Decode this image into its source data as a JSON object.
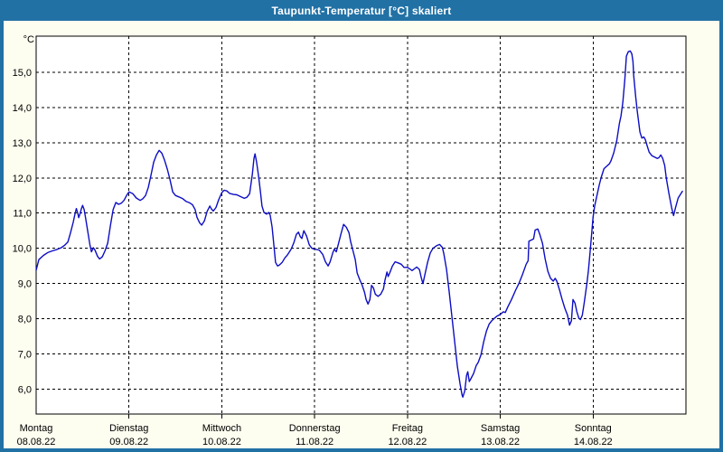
{
  "window": {
    "title": "Taupunkt-Temperatur [°C] skaliert"
  },
  "colors": {
    "titlebar": "#2171a5",
    "title_text": "#ffffff",
    "window_bg": "#fdfdf0",
    "plot_bg": "#ffffff",
    "grid": "#000000",
    "text": "#000000",
    "line": "#0d0dc4"
  },
  "chart_data": {
    "type": "line",
    "title": "Taupunkt-Temperatur [°C] skaliert",
    "grid": true,
    "legend": false,
    "x_axis": {
      "range_hours": [
        0,
        168
      ],
      "ticks": [
        {
          "hour": 0,
          "day": "Montag",
          "date": "08.08.22"
        },
        {
          "hour": 24,
          "day": "Dienstag",
          "date": "09.08.22"
        },
        {
          "hour": 48,
          "day": "Mittwoch",
          "date": "10.08.22"
        },
        {
          "hour": 72,
          "day": "Donnerstag",
          "date": "11.08.22"
        },
        {
          "hour": 96,
          "day": "Freitag",
          "date": "12.08.22"
        },
        {
          "hour": 120,
          "day": "Samstag",
          "date": "13.08.22"
        },
        {
          "hour": 144,
          "day": "Sonntag",
          "date": "14.08.22"
        }
      ]
    },
    "y_axis": {
      "unit": "°C",
      "range": [
        5.3,
        16.02
      ],
      "ticks": [
        {
          "value": 15,
          "label": "15,0"
        },
        {
          "value": 14,
          "label": "14,0"
        },
        {
          "value": 13,
          "label": "13,0"
        },
        {
          "value": 12,
          "label": "12,0"
        },
        {
          "value": 11,
          "label": "11,0"
        },
        {
          "value": 10,
          "label": "10,0"
        },
        {
          "value": 9,
          "label": "9,0"
        },
        {
          "value": 8,
          "label": "8,0"
        },
        {
          "value": 7,
          "label": "7,0"
        },
        {
          "value": 6,
          "label": "6,0"
        }
      ]
    },
    "series": [
      {
        "points": [
          [
            0,
            9.38
          ],
          [
            0.7,
            9.68
          ],
          [
            1.9,
            9.8
          ],
          [
            3,
            9.88
          ],
          [
            4.2,
            9.93
          ],
          [
            5.4,
            9.97
          ],
          [
            6.5,
            10.02
          ],
          [
            7.3,
            10.08
          ],
          [
            8.2,
            10.18
          ],
          [
            8.9,
            10.45
          ],
          [
            9.6,
            10.75
          ],
          [
            10.1,
            11.0
          ],
          [
            10.4,
            11.13
          ],
          [
            10.8,
            10.98
          ],
          [
            11,
            10.87
          ],
          [
            11.4,
            11.0
          ],
          [
            11.7,
            11.13
          ],
          [
            12,
            11.22
          ],
          [
            12.4,
            11.1
          ],
          [
            12.8,
            10.85
          ],
          [
            13.4,
            10.45
          ],
          [
            13.9,
            10.1
          ],
          [
            14.3,
            9.9
          ],
          [
            14.8,
            10.02
          ],
          [
            15.2,
            9.95
          ],
          [
            15.9,
            9.77
          ],
          [
            16.4,
            9.7
          ],
          [
            17.1,
            9.76
          ],
          [
            17.8,
            9.93
          ],
          [
            18.5,
            10.15
          ],
          [
            19.2,
            10.65
          ],
          [
            19.9,
            11.1
          ],
          [
            20.6,
            11.3
          ],
          [
            21.3,
            11.25
          ],
          [
            22,
            11.28
          ],
          [
            22.7,
            11.36
          ],
          [
            23.4,
            11.5
          ],
          [
            24,
            11.6
          ],
          [
            25,
            11.55
          ],
          [
            25.9,
            11.43
          ],
          [
            26.9,
            11.36
          ],
          [
            27.6,
            11.41
          ],
          [
            28.3,
            11.5
          ],
          [
            29,
            11.73
          ],
          [
            29.7,
            12.08
          ],
          [
            30.4,
            12.45
          ],
          [
            31.1,
            12.65
          ],
          [
            31.8,
            12.78
          ],
          [
            32.5,
            12.7
          ],
          [
            33.2,
            12.5
          ],
          [
            33.9,
            12.25
          ],
          [
            34.6,
            11.95
          ],
          [
            35.3,
            11.6
          ],
          [
            36,
            11.5
          ],
          [
            36.9,
            11.46
          ],
          [
            37.9,
            11.41
          ],
          [
            38.8,
            11.33
          ],
          [
            39.7,
            11.29
          ],
          [
            40.4,
            11.24
          ],
          [
            41.1,
            11.1
          ],
          [
            41.6,
            10.88
          ],
          [
            42.3,
            10.72
          ],
          [
            42.8,
            10.66
          ],
          [
            43.5,
            10.78
          ],
          [
            44.2,
            11.05
          ],
          [
            44.9,
            11.2
          ],
          [
            45.3,
            11.12
          ],
          [
            45.8,
            11.06
          ],
          [
            46.5,
            11.16
          ],
          [
            47.2,
            11.38
          ],
          [
            48,
            11.58
          ],
          [
            48.6,
            11.65
          ],
          [
            49.3,
            11.63
          ],
          [
            50,
            11.56
          ],
          [
            51,
            11.53
          ],
          [
            51.9,
            11.52
          ],
          [
            52.8,
            11.47
          ],
          [
            53.8,
            11.42
          ],
          [
            54.5,
            11.45
          ],
          [
            55.2,
            11.55
          ],
          [
            55.9,
            12.1
          ],
          [
            56.3,
            12.55
          ],
          [
            56.6,
            12.68
          ],
          [
            57,
            12.45
          ],
          [
            57.5,
            12.05
          ],
          [
            58,
            11.6
          ],
          [
            58.4,
            11.2
          ],
          [
            58.9,
            11.02
          ],
          [
            59.6,
            10.97
          ],
          [
            60.1,
            11.02
          ],
          [
            60.5,
            10.95
          ],
          [
            61,
            10.6
          ],
          [
            61.5,
            10.05
          ],
          [
            61.9,
            9.6
          ],
          [
            62.4,
            9.5
          ],
          [
            62.9,
            9.53
          ],
          [
            63.6,
            9.6
          ],
          [
            64.3,
            9.73
          ],
          [
            65,
            9.82
          ],
          [
            65.9,
            9.97
          ],
          [
            66.6,
            10.15
          ],
          [
            67.3,
            10.4
          ],
          [
            67.8,
            10.46
          ],
          [
            68.3,
            10.33
          ],
          [
            68.7,
            10.28
          ],
          [
            69.2,
            10.5
          ],
          [
            69.9,
            10.35
          ],
          [
            70.6,
            10.1
          ],
          [
            71.3,
            10.0
          ],
          [
            72,
            9.98
          ],
          [
            73.2,
            9.95
          ],
          [
            74.1,
            9.83
          ],
          [
            74.8,
            9.62
          ],
          [
            75.5,
            9.5
          ],
          [
            76,
            9.62
          ],
          [
            76.7,
            9.88
          ],
          [
            77.1,
            9.98
          ],
          [
            77.6,
            9.9
          ],
          [
            78.1,
            10.1
          ],
          [
            78.8,
            10.4
          ],
          [
            79.5,
            10.68
          ],
          [
            80.2,
            10.6
          ],
          [
            80.9,
            10.44
          ],
          [
            81.3,
            10.2
          ],
          [
            81.8,
            9.98
          ],
          [
            82.5,
            9.68
          ],
          [
            83,
            9.3
          ],
          [
            83.7,
            9.1
          ],
          [
            84.2,
            8.98
          ],
          [
            84.9,
            8.75
          ],
          [
            85.3,
            8.55
          ],
          [
            85.8,
            8.42
          ],
          [
            86.3,
            8.55
          ],
          [
            86.7,
            8.95
          ],
          [
            87.2,
            8.88
          ],
          [
            87.7,
            8.7
          ],
          [
            88.4,
            8.64
          ],
          [
            89.1,
            8.7
          ],
          [
            89.8,
            8.85
          ],
          [
            90.2,
            9.1
          ],
          [
            90.7,
            9.33
          ],
          [
            91,
            9.2
          ],
          [
            91.4,
            9.3
          ],
          [
            92.1,
            9.5
          ],
          [
            92.8,
            9.62
          ],
          [
            93.5,
            9.59
          ],
          [
            94.4,
            9.55
          ],
          [
            95.1,
            9.46
          ],
          [
            96,
            9.46
          ],
          [
            96.8,
            9.4
          ],
          [
            97.2,
            9.37
          ],
          [
            97.9,
            9.43
          ],
          [
            98.4,
            9.47
          ],
          [
            99.1,
            9.4
          ],
          [
            99.6,
            9.15
          ],
          [
            100,
            9.0
          ],
          [
            100.5,
            9.25
          ],
          [
            101.2,
            9.6
          ],
          [
            101.9,
            9.87
          ],
          [
            102.6,
            10.0
          ],
          [
            103.6,
            10.08
          ],
          [
            104.3,
            10.11
          ],
          [
            105,
            10.03
          ],
          [
            105.4,
            9.85
          ],
          [
            106.1,
            9.4
          ],
          [
            106.8,
            8.75
          ],
          [
            107.5,
            8.05
          ],
          [
            108.2,
            7.35
          ],
          [
            108.9,
            6.65
          ],
          [
            109.6,
            6.15
          ],
          [
            110.1,
            5.85
          ],
          [
            110.3,
            5.78
          ],
          [
            110.8,
            5.95
          ],
          [
            111.3,
            6.4
          ],
          [
            111.6,
            6.5
          ],
          [
            112,
            6.22
          ],
          [
            112.4,
            6.3
          ],
          [
            113.1,
            6.45
          ],
          [
            113.8,
            6.68
          ],
          [
            114.3,
            6.77
          ],
          [
            115,
            6.98
          ],
          [
            115.7,
            7.35
          ],
          [
            116.4,
            7.65
          ],
          [
            117.1,
            7.85
          ],
          [
            117.8,
            7.95
          ],
          [
            118.5,
            8.02
          ],
          [
            119.2,
            8.08
          ],
          [
            120,
            8.13
          ],
          [
            120.8,
            8.2
          ],
          [
            121.3,
            8.18
          ],
          [
            122,
            8.35
          ],
          [
            122.9,
            8.55
          ],
          [
            123.9,
            8.8
          ],
          [
            124.8,
            9.0
          ],
          [
            125.7,
            9.25
          ],
          [
            126.7,
            9.55
          ],
          [
            127.2,
            9.65
          ],
          [
            127.4,
            10.2
          ],
          [
            128.1,
            10.24
          ],
          [
            128.6,
            10.27
          ],
          [
            129,
            10.52
          ],
          [
            129.7,
            10.55
          ],
          [
            130.2,
            10.4
          ],
          [
            130.9,
            10.15
          ],
          [
            131.6,
            9.7
          ],
          [
            132.3,
            9.35
          ],
          [
            133,
            9.15
          ],
          [
            133.7,
            9.07
          ],
          [
            134.2,
            9.15
          ],
          [
            134.6,
            9.07
          ],
          [
            135.3,
            8.82
          ],
          [
            136,
            8.55
          ],
          [
            136.7,
            8.3
          ],
          [
            137.4,
            8.1
          ],
          [
            137.9,
            7.82
          ],
          [
            138.4,
            7.95
          ],
          [
            138.8,
            8.55
          ],
          [
            139.3,
            8.45
          ],
          [
            139.8,
            8.2
          ],
          [
            140.3,
            8.02
          ],
          [
            140.7,
            7.98
          ],
          [
            141.2,
            8.1
          ],
          [
            141.7,
            8.45
          ],
          [
            142.4,
            9.0
          ],
          [
            142.8,
            9.4
          ],
          [
            143.3,
            10.0
          ],
          [
            144,
            10.9
          ],
          [
            144.4,
            11.2
          ],
          [
            144.9,
            11.45
          ],
          [
            145.6,
            11.8
          ],
          [
            146.1,
            12.02
          ],
          [
            146.8,
            12.26
          ],
          [
            147.5,
            12.33
          ],
          [
            148.2,
            12.4
          ],
          [
            148.6,
            12.48
          ],
          [
            149.3,
            12.7
          ],
          [
            150.1,
            13.05
          ],
          [
            150.8,
            13.55
          ],
          [
            151.2,
            13.75
          ],
          [
            151.7,
            14.15
          ],
          [
            152.2,
            14.8
          ],
          [
            152.6,
            15.45
          ],
          [
            153.1,
            15.58
          ],
          [
            153.6,
            15.6
          ],
          [
            154,
            15.52
          ],
          [
            154.3,
            15.3
          ],
          [
            154.5,
            14.9
          ],
          [
            155,
            14.3
          ],
          [
            155.4,
            13.9
          ],
          [
            156.1,
            13.3
          ],
          [
            156.6,
            13.13
          ],
          [
            157.1,
            13.16
          ],
          [
            157.5,
            13.08
          ],
          [
            158,
            12.9
          ],
          [
            158.5,
            12.73
          ],
          [
            159.2,
            12.63
          ],
          [
            159.9,
            12.59
          ],
          [
            160.6,
            12.55
          ],
          [
            161,
            12.57
          ],
          [
            161.5,
            12.65
          ],
          [
            162,
            12.55
          ],
          [
            162.5,
            12.35
          ],
          [
            162.9,
            12.0
          ],
          [
            163.6,
            11.55
          ],
          [
            164.3,
            11.15
          ],
          [
            164.8,
            10.93
          ],
          [
            165.3,
            11.15
          ],
          [
            166,
            11.43
          ],
          [
            166.7,
            11.55
          ],
          [
            167.1,
            11.62
          ]
        ]
      }
    ]
  }
}
